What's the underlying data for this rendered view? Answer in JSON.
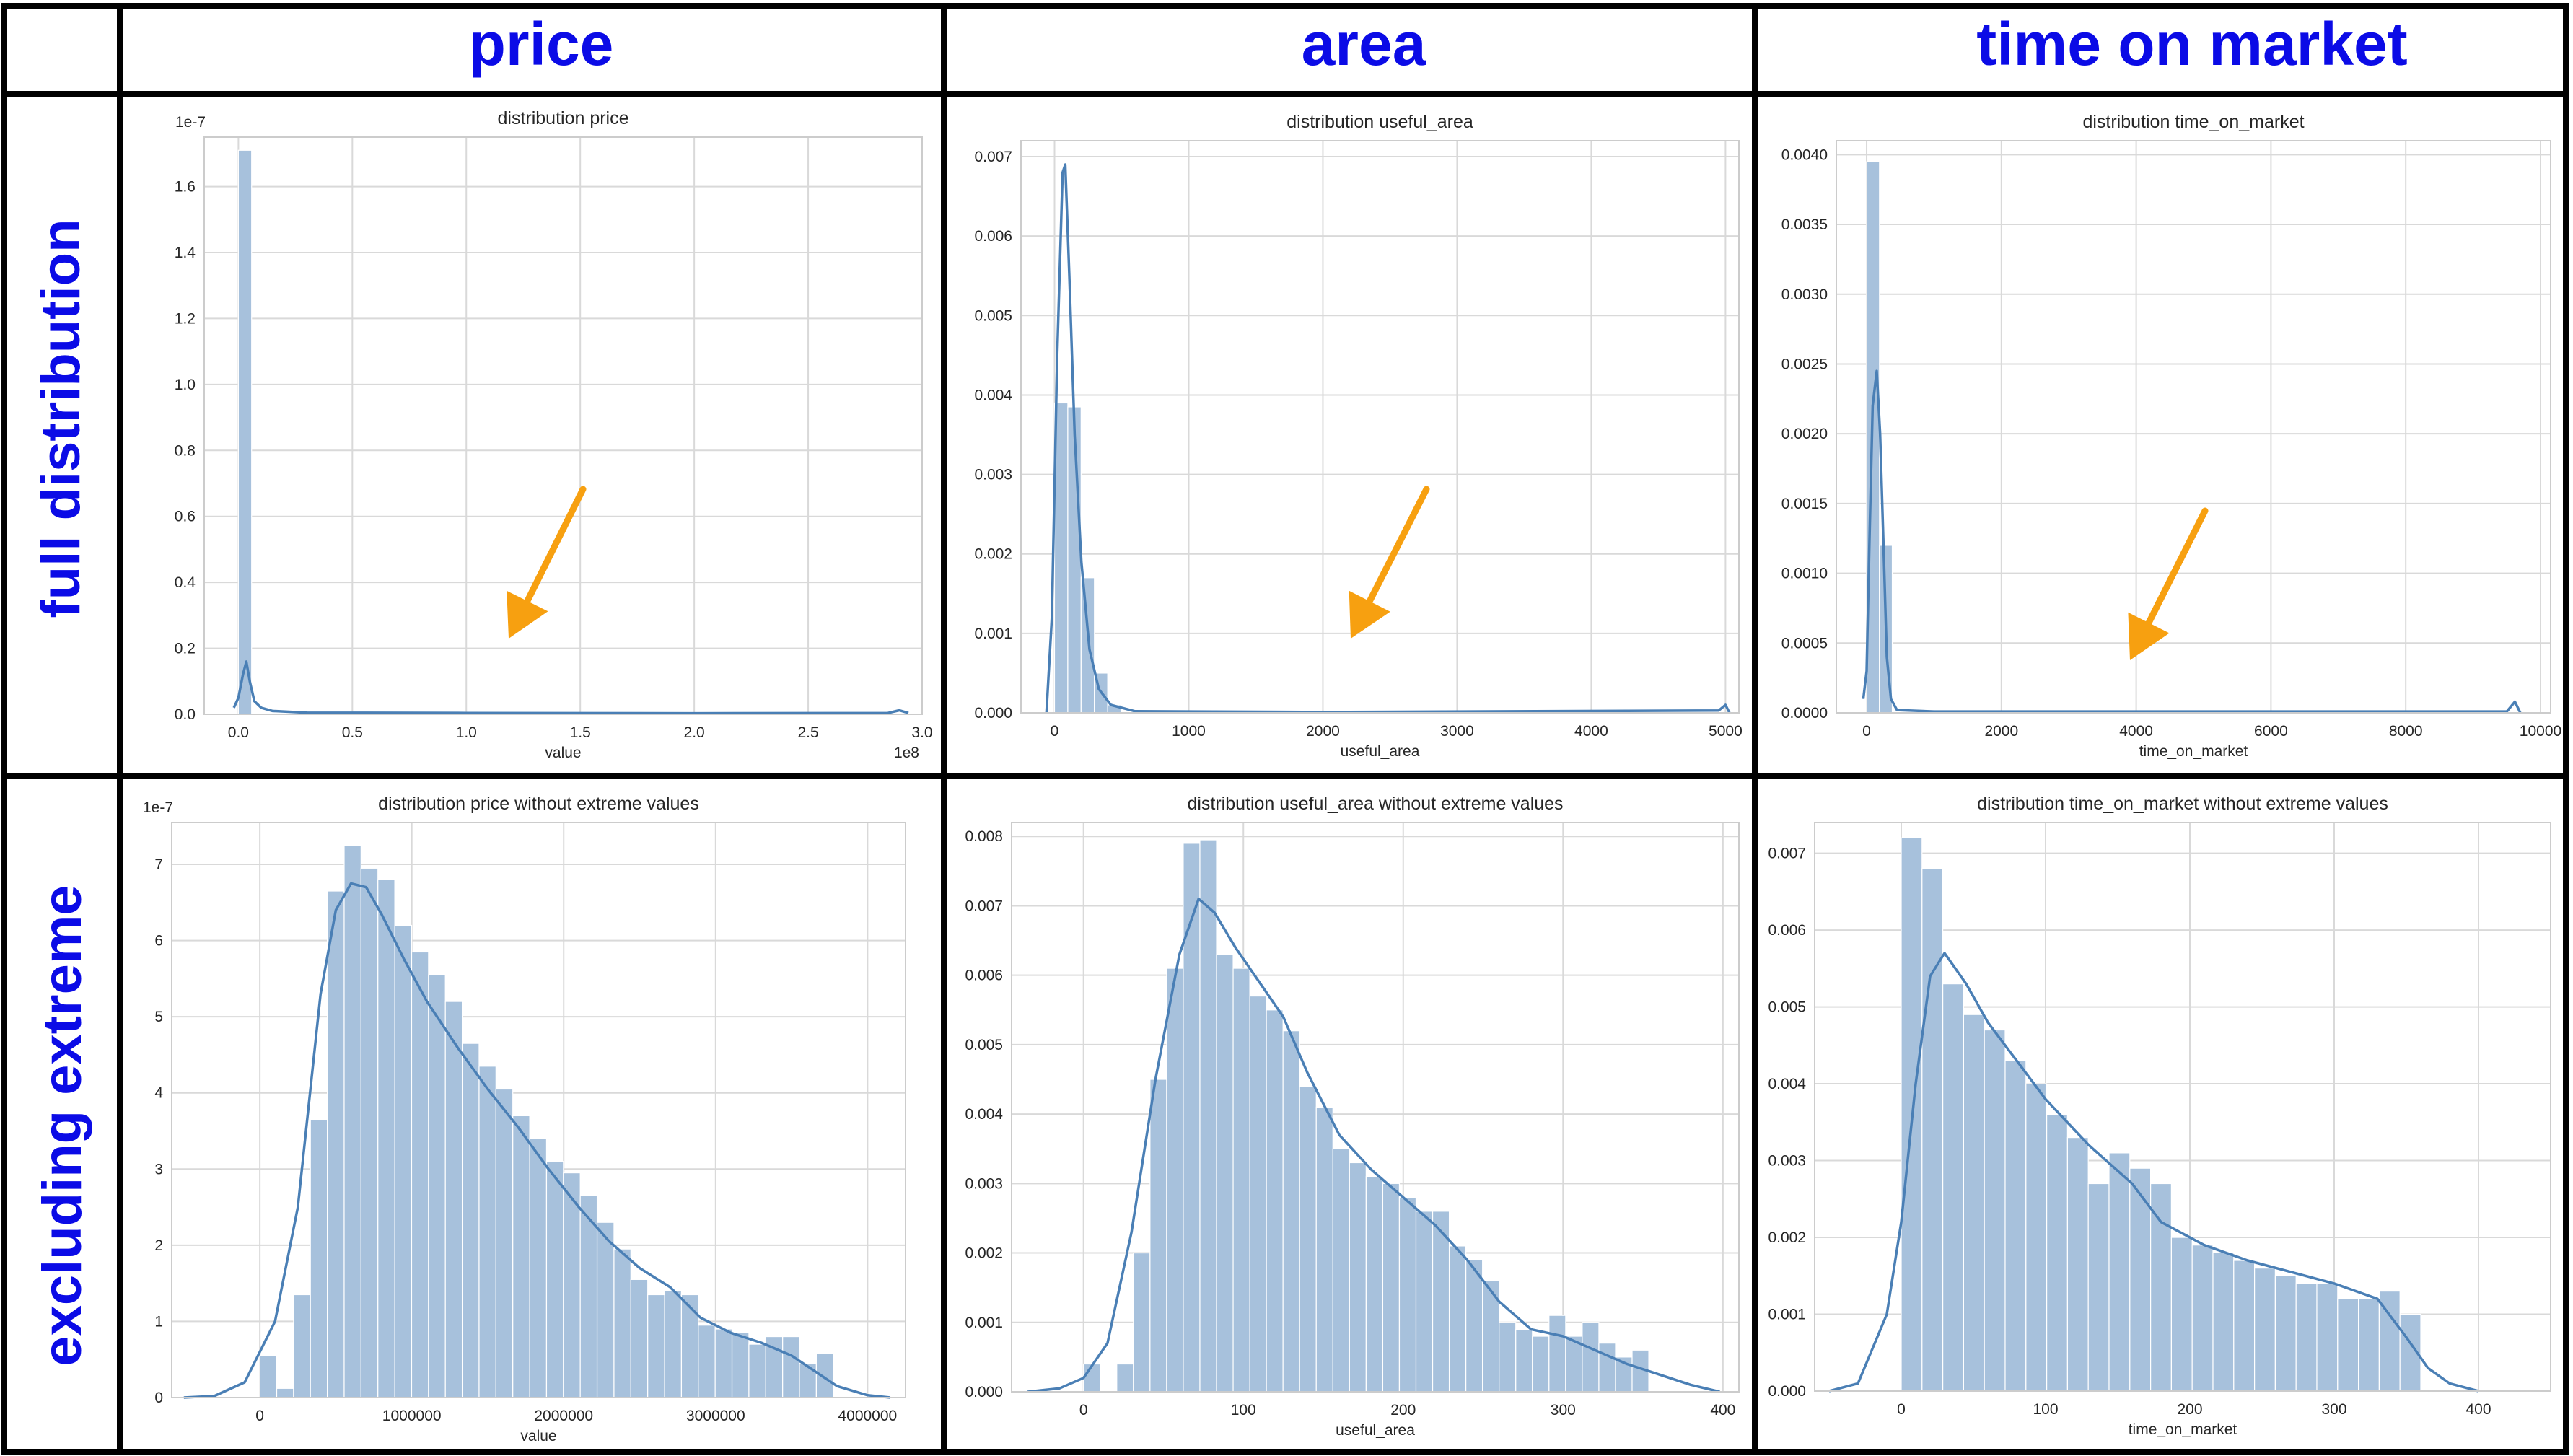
{
  "columns": [
    "price",
    "area",
    "time on market"
  ],
  "rows": [
    "full distribution",
    "excluding extreme"
  ],
  "chart_data": [
    {
      "type": "bar",
      "title": "distribution price",
      "xlabel": "value",
      "ylabel": "",
      "xlim": [
        -0.15,
        3.0
      ],
      "ylim": [
        0,
        1.75
      ],
      "xticks": [
        0.0,
        0.5,
        1.0,
        1.5,
        2.0,
        2.5,
        3.0
      ],
      "xtick_labels": [
        "0.0",
        "0.5",
        "1.0",
        "1.5",
        "2.0",
        "2.5",
        "3.0"
      ],
      "yticks": [
        0,
        0.2,
        0.4,
        0.6,
        0.8,
        1.0,
        1.2,
        1.4,
        1.6
      ],
      "ytick_labels": [
        "0.0",
        "0.2",
        "0.4",
        "0.6",
        "0.8",
        "1.0",
        "1.2",
        "1.4",
        "1.6"
      ],
      "x_multiplier": "1e8",
      "y_multiplier": "1e-7",
      "bin_width": 0.058,
      "bins": [
        [
          0.0,
          1.71
        ]
      ],
      "kde": [
        [
          -0.02,
          0.02
        ],
        [
          0.0,
          0.05
        ],
        [
          0.02,
          0.12
        ],
        [
          0.035,
          0.16
        ],
        [
          0.05,
          0.1
        ],
        [
          0.07,
          0.04
        ],
        [
          0.1,
          0.02
        ],
        [
          0.15,
          0.01
        ],
        [
          0.3,
          0.005
        ],
        [
          1.0,
          0.004
        ],
        [
          2.0,
          0.003
        ],
        [
          2.85,
          0.004
        ],
        [
          2.9,
          0.012
        ],
        [
          2.94,
          0.004
        ]
      ],
      "grid": true
    },
    {
      "type": "bar",
      "title": "distribution useful_area",
      "xlabel": "useful_area",
      "ylabel": "",
      "xlim": [
        -250,
        5100
      ],
      "ylim": [
        0,
        0.0072
      ],
      "xticks": [
        0,
        1000,
        2000,
        3000,
        4000,
        5000
      ],
      "xtick_labels": [
        "0",
        "1000",
        "2000",
        "3000",
        "4000",
        "5000"
      ],
      "yticks": [
        0,
        0.001,
        0.002,
        0.003,
        0.004,
        0.005,
        0.006,
        0.007
      ],
      "ytick_labels": [
        "0.000",
        "0.001",
        "0.002",
        "0.003",
        "0.004",
        "0.005",
        "0.006",
        "0.007"
      ],
      "bin_width": 99,
      "bins": [
        [
          0,
          0.0039
        ],
        [
          99,
          0.00385
        ],
        [
          198,
          0.0017
        ],
        [
          297,
          0.0005
        ],
        [
          396,
          0.0001
        ]
      ],
      "kde": [
        [
          -60,
          0.0
        ],
        [
          -20,
          0.0012
        ],
        [
          20,
          0.0045
        ],
        [
          60,
          0.0068
        ],
        [
          80,
          0.0069
        ],
        [
          110,
          0.0055
        ],
        [
          150,
          0.0035
        ],
        [
          200,
          0.0019
        ],
        [
          260,
          0.0008
        ],
        [
          330,
          0.0003
        ],
        [
          420,
          0.0001
        ],
        [
          600,
          2e-05
        ],
        [
          2000,
          1e-05
        ],
        [
          4950,
          3e-05
        ],
        [
          5000,
          0.0001
        ],
        [
          5030,
          0.0
        ]
      ],
      "grid": true
    },
    {
      "type": "bar",
      "title": "distribution time_on_market",
      "xlabel": "time_on_market",
      "ylabel": "",
      "xlim": [
        -450,
        10150
      ],
      "ylim": [
        0,
        0.0041
      ],
      "xticks": [
        0,
        2000,
        4000,
        6000,
        8000,
        10000
      ],
      "xtick_labels": [
        "0",
        "2000",
        "4000",
        "6000",
        "8000",
        "10000"
      ],
      "yticks": [
        0,
        0.0005,
        0.001,
        0.0015,
        0.002,
        0.0025,
        0.003,
        0.0035,
        0.004
      ],
      "ytick_labels": [
        "0.0000",
        "0.0005",
        "0.0010",
        "0.0015",
        "0.0020",
        "0.0025",
        "0.0030",
        "0.0035",
        "0.0040"
      ],
      "bin_width": 190,
      "bins": [
        [
          0,
          0.00395
        ],
        [
          190,
          0.0012
        ]
      ],
      "kde": [
        [
          -50,
          0.0001
        ],
        [
          0,
          0.0003
        ],
        [
          40,
          0.0012
        ],
        [
          90,
          0.0022
        ],
        [
          150,
          0.00245
        ],
        [
          200,
          0.002
        ],
        [
          250,
          0.0012
        ],
        [
          300,
          0.0004
        ],
        [
          360,
          0.0001
        ],
        [
          450,
          2e-05
        ],
        [
          1000,
          1e-05
        ],
        [
          5000,
          1e-05
        ],
        [
          9500,
          1e-05
        ],
        [
          9620,
          8e-05
        ],
        [
          9700,
          0.0
        ]
      ],
      "grid": true
    },
    {
      "type": "bar",
      "title": "distribution price without extreme values",
      "xlabel": "value",
      "ylabel": "",
      "xlim": [
        -580000,
        4250000
      ],
      "ylim": [
        0,
        7.55
      ],
      "xticks": [
        0,
        1000000,
        2000000,
        3000000,
        4000000
      ],
      "xtick_labels": [
        "0",
        "1000000",
        "2000000",
        "3000000",
        "4000000"
      ],
      "yticks": [
        0,
        1,
        2,
        3,
        4,
        5,
        6,
        7
      ],
      "ytick_labels": [
        "0",
        "1",
        "2",
        "3",
        "4",
        "5",
        "6",
        "7"
      ],
      "y_multiplier": "1e-7",
      "bin_width": 111000,
      "bins": [
        [
          0,
          0.55
        ],
        [
          111000,
          0.12
        ],
        [
          222000,
          1.35
        ],
        [
          333000,
          3.65
        ],
        [
          444000,
          6.65
        ],
        [
          555000,
          7.25
        ],
        [
          666000,
          6.95
        ],
        [
          777000,
          6.8
        ],
        [
          888000,
          6.2
        ],
        [
          999000,
          5.85
        ],
        [
          1110000,
          5.55
        ],
        [
          1221000,
          5.2
        ],
        [
          1332000,
          4.65
        ],
        [
          1443000,
          4.35
        ],
        [
          1554000,
          4.05
        ],
        [
          1665000,
          3.7
        ],
        [
          1776000,
          3.4
        ],
        [
          1887000,
          3.1
        ],
        [
          1998000,
          2.95
        ],
        [
          2109000,
          2.65
        ],
        [
          2220000,
          2.3
        ],
        [
          2331000,
          1.95
        ],
        [
          2442000,
          1.55
        ],
        [
          2553000,
          1.35
        ],
        [
          2664000,
          1.4
        ],
        [
          2775000,
          1.35
        ],
        [
          2886000,
          0.95
        ],
        [
          2997000,
          0.9
        ],
        [
          3108000,
          0.85
        ],
        [
          3219000,
          0.7
        ],
        [
          3330000,
          0.8
        ],
        [
          3441000,
          0.8
        ],
        [
          3552000,
          0.45
        ],
        [
          3663000,
          0.58
        ]
      ],
      "kde": [
        [
          -500000,
          0.0
        ],
        [
          -300000,
          0.02
        ],
        [
          -100000,
          0.2
        ],
        [
          100000,
          1.0
        ],
        [
          250000,
          2.5
        ],
        [
          400000,
          5.3
        ],
        [
          500000,
          6.4
        ],
        [
          600000,
          6.75
        ],
        [
          700000,
          6.7
        ],
        [
          800000,
          6.35
        ],
        [
          950000,
          5.75
        ],
        [
          1100000,
          5.2
        ],
        [
          1300000,
          4.6
        ],
        [
          1500000,
          4.05
        ],
        [
          1700000,
          3.55
        ],
        [
          1900000,
          3.0
        ],
        [
          2100000,
          2.5
        ],
        [
          2300000,
          2.05
        ],
        [
          2500000,
          1.7
        ],
        [
          2700000,
          1.45
        ],
        [
          2900000,
          1.05
        ],
        [
          3100000,
          0.85
        ],
        [
          3300000,
          0.72
        ],
        [
          3500000,
          0.55
        ],
        [
          3650000,
          0.35
        ],
        [
          3800000,
          0.15
        ],
        [
          4000000,
          0.03
        ],
        [
          4150000,
          0.0
        ]
      ],
      "grid": true
    },
    {
      "type": "bar",
      "title": "distribution useful_area without extreme values",
      "xlabel": "useful_area",
      "ylabel": "",
      "xlim": [
        -45,
        410
      ],
      "ylim": [
        0,
        0.0082
      ],
      "xticks": [
        0,
        100,
        200,
        300,
        400
      ],
      "xtick_labels": [
        "0",
        "100",
        "200",
        "300",
        "400"
      ],
      "yticks": [
        0,
        0.001,
        0.002,
        0.003,
        0.004,
        0.005,
        0.006,
        0.007,
        0.008
      ],
      "ytick_labels": [
        "0.000",
        "0.001",
        "0.002",
        "0.003",
        "0.004",
        "0.005",
        "0.006",
        "0.007",
        "0.008"
      ],
      "bin_width": 10.4,
      "bins": [
        [
          0,
          0.0004
        ],
        [
          10.4,
          0.0
        ],
        [
          20.8,
          0.0004
        ],
        [
          31.2,
          0.002
        ],
        [
          41.6,
          0.0045
        ],
        [
          52.0,
          0.0061
        ],
        [
          62.4,
          0.0079
        ],
        [
          72.8,
          0.00795
        ],
        [
          83.2,
          0.0063
        ],
        [
          93.6,
          0.0061
        ],
        [
          104.0,
          0.0057
        ],
        [
          114.4,
          0.0055
        ],
        [
          124.8,
          0.0052
        ],
        [
          135.2,
          0.0044
        ],
        [
          145.6,
          0.0041
        ],
        [
          156.0,
          0.0035
        ],
        [
          166.4,
          0.0033
        ],
        [
          176.8,
          0.0031
        ],
        [
          187.2,
          0.003
        ],
        [
          197.6,
          0.0028
        ],
        [
          208.0,
          0.0026
        ],
        [
          218.4,
          0.0026
        ],
        [
          228.8,
          0.0021
        ],
        [
          239.2,
          0.0019
        ],
        [
          249.6,
          0.0016
        ],
        [
          260.0,
          0.001
        ],
        [
          270.4,
          0.0009
        ],
        [
          280.8,
          0.0008
        ],
        [
          291.2,
          0.0011
        ],
        [
          301.6,
          0.0008
        ],
        [
          312.0,
          0.001
        ],
        [
          322.4,
          0.0007
        ],
        [
          332.8,
          0.0005
        ],
        [
          343.2,
          0.0006
        ]
      ],
      "kde": [
        [
          -35,
          0.0
        ],
        [
          -15,
          5e-05
        ],
        [
          0,
          0.0002
        ],
        [
          15,
          0.0007
        ],
        [
          30,
          0.0023
        ],
        [
          45,
          0.0045
        ],
        [
          60,
          0.0063
        ],
        [
          72,
          0.0071
        ],
        [
          82,
          0.0069
        ],
        [
          95,
          0.0064
        ],
        [
          110,
          0.0059
        ],
        [
          125,
          0.0054
        ],
        [
          140,
          0.0046
        ],
        [
          160,
          0.0037
        ],
        [
          180,
          0.0032
        ],
        [
          200,
          0.0028
        ],
        [
          220,
          0.0024
        ],
        [
          240,
          0.0019
        ],
        [
          260,
          0.0013
        ],
        [
          280,
          0.0009
        ],
        [
          300,
          0.0008
        ],
        [
          320,
          0.0006
        ],
        [
          340,
          0.0004
        ],
        [
          360,
          0.00025
        ],
        [
          380,
          0.0001
        ],
        [
          398,
          0.0
        ]
      ],
      "grid": true
    },
    {
      "type": "bar",
      "title": "distribution time_on_market without extreme values",
      "xlabel": "time_on_market",
      "ylabel": "",
      "xlim": [
        -60,
        450
      ],
      "ylim": [
        0,
        0.0074
      ],
      "xticks": [
        0,
        100,
        200,
        300,
        400
      ],
      "xtick_labels": [
        "0",
        "100",
        "200",
        "300",
        "400"
      ],
      "yticks": [
        0,
        0.001,
        0.002,
        0.003,
        0.004,
        0.005,
        0.006,
        0.007
      ],
      "ytick_labels": [
        "0.000",
        "0.001",
        "0.002",
        "0.003",
        "0.004",
        "0.005",
        "0.006",
        "0.007"
      ],
      "bin_width": 14.4,
      "bins": [
        [
          0,
          0.0072
        ],
        [
          14.4,
          0.0068
        ],
        [
          28.8,
          0.0053
        ],
        [
          43.2,
          0.0049
        ],
        [
          57.6,
          0.0047
        ],
        [
          72.0,
          0.0043
        ],
        [
          86.4,
          0.004
        ],
        [
          100.8,
          0.0036
        ],
        [
          115.2,
          0.0033
        ],
        [
          129.6,
          0.0027
        ],
        [
          144.0,
          0.0031
        ],
        [
          158.4,
          0.0029
        ],
        [
          172.8,
          0.0027
        ],
        [
          187.2,
          0.002
        ],
        [
          201.6,
          0.0019
        ],
        [
          216.0,
          0.0018
        ],
        [
          230.4,
          0.0017
        ],
        [
          244.8,
          0.0016
        ],
        [
          259.2,
          0.0015
        ],
        [
          273.6,
          0.0014
        ],
        [
          288.0,
          0.0014
        ],
        [
          302.4,
          0.0012
        ],
        [
          316.8,
          0.0012
        ],
        [
          331.2,
          0.0013
        ],
        [
          345.6,
          0.001
        ]
      ],
      "kde": [
        [
          -50,
          0.0
        ],
        [
          -30,
          0.0001
        ],
        [
          -10,
          0.001
        ],
        [
          0,
          0.0022
        ],
        [
          10,
          0.004
        ],
        [
          20,
          0.0054
        ],
        [
          30,
          0.0057
        ],
        [
          45,
          0.0053
        ],
        [
          60,
          0.0048
        ],
        [
          80,
          0.0043
        ],
        [
          100,
          0.0038
        ],
        [
          130,
          0.0032
        ],
        [
          160,
          0.0027
        ],
        [
          180,
          0.0022
        ],
        [
          210,
          0.0019
        ],
        [
          240,
          0.0017
        ],
        [
          270,
          0.00155
        ],
        [
          300,
          0.0014
        ],
        [
          330,
          0.0012
        ],
        [
          350,
          0.0007
        ],
        [
          365,
          0.0003
        ],
        [
          380,
          0.0001
        ],
        [
          400,
          0.0
        ]
      ],
      "grid": true
    }
  ]
}
